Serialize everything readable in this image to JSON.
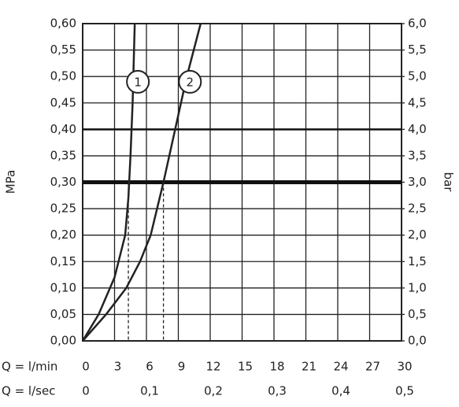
{
  "chart_data": {
    "type": "line",
    "ylabel": "MPa",
    "y2label": "bar",
    "xlabel": "Q = l/min",
    "x2label": "Q = l/sec",
    "xlim": [
      0,
      30
    ],
    "xticks": [
      0,
      3,
      6,
      9,
      12,
      15,
      18,
      21,
      24,
      27,
      30
    ],
    "x2lim": [
      0,
      0.5
    ],
    "x2ticks": [
      {
        "value": 0,
        "label": "0"
      },
      {
        "value": 0.1,
        "label": "0,1"
      },
      {
        "value": 0.2,
        "label": "0,2"
      },
      {
        "value": 0.3,
        "label": "0,3"
      },
      {
        "value": 0.4,
        "label": "0,4"
      },
      {
        "value": 0.5,
        "label": "0,5"
      }
    ],
    "ylim": [
      0,
      0.6
    ],
    "yticks": [
      {
        "value": 0,
        "label": "0,00"
      },
      {
        "value": 0.05,
        "label": "0,05"
      },
      {
        "value": 0.1,
        "label": "0,10"
      },
      {
        "value": 0.15,
        "label": "0,15"
      },
      {
        "value": 0.2,
        "label": "0,20"
      },
      {
        "value": 0.25,
        "label": "0,25"
      },
      {
        "value": 0.3,
        "label": "0,30"
      },
      {
        "value": 0.35,
        "label": "0,35"
      },
      {
        "value": 0.4,
        "label": "0,40"
      },
      {
        "value": 0.45,
        "label": "0,45"
      },
      {
        "value": 0.5,
        "label": "0,50"
      },
      {
        "value": 0.55,
        "label": "0,55"
      },
      {
        "value": 0.6,
        "label": "0,60"
      }
    ],
    "y2lim": [
      0,
      6
    ],
    "y2ticks": [
      {
        "value": 0,
        "label": "0,0"
      },
      {
        "value": 0.5,
        "label": "0,5"
      },
      {
        "value": 1,
        "label": "1,0"
      },
      {
        "value": 1.5,
        "label": "1,5"
      },
      {
        "value": 2,
        "label": "2,0"
      },
      {
        "value": 2.5,
        "label": "2,5"
      },
      {
        "value": 3,
        "label": "3,0"
      },
      {
        "value": 3.5,
        "label": "3,5"
      },
      {
        "value": 4,
        "label": "4,0"
      },
      {
        "value": 4.5,
        "label": "4,5"
      },
      {
        "value": 5,
        "label": "5,0"
      },
      {
        "value": 5.5,
        "label": "5,5"
      },
      {
        "value": 6,
        "label": "6,0"
      }
    ],
    "grid": true,
    "reference_lines": [
      0.3,
      0.4
    ],
    "series": [
      {
        "name": "1",
        "color": "#222222",
        "x": [
          0,
          1.5,
          3,
          4,
          4.3,
          4.5,
          4.7,
          4.9
        ],
        "values": [
          0,
          0.05,
          0.12,
          0.2,
          0.27,
          0.35,
          0.45,
          0.6
        ]
      },
      {
        "name": "2",
        "color": "#222222",
        "x": [
          0,
          2.2,
          4.1,
          5.4,
          6.4,
          7.6,
          8.7,
          9.8,
          11.1
        ],
        "values": [
          0,
          0.05,
          0.1,
          0.15,
          0.2,
          0.3,
          0.4,
          0.5,
          0.6
        ]
      }
    ],
    "markers": [
      {
        "x": 4.3,
        "y": 0.3
      },
      {
        "x": 7.6,
        "y": 0.3
      }
    ]
  }
}
